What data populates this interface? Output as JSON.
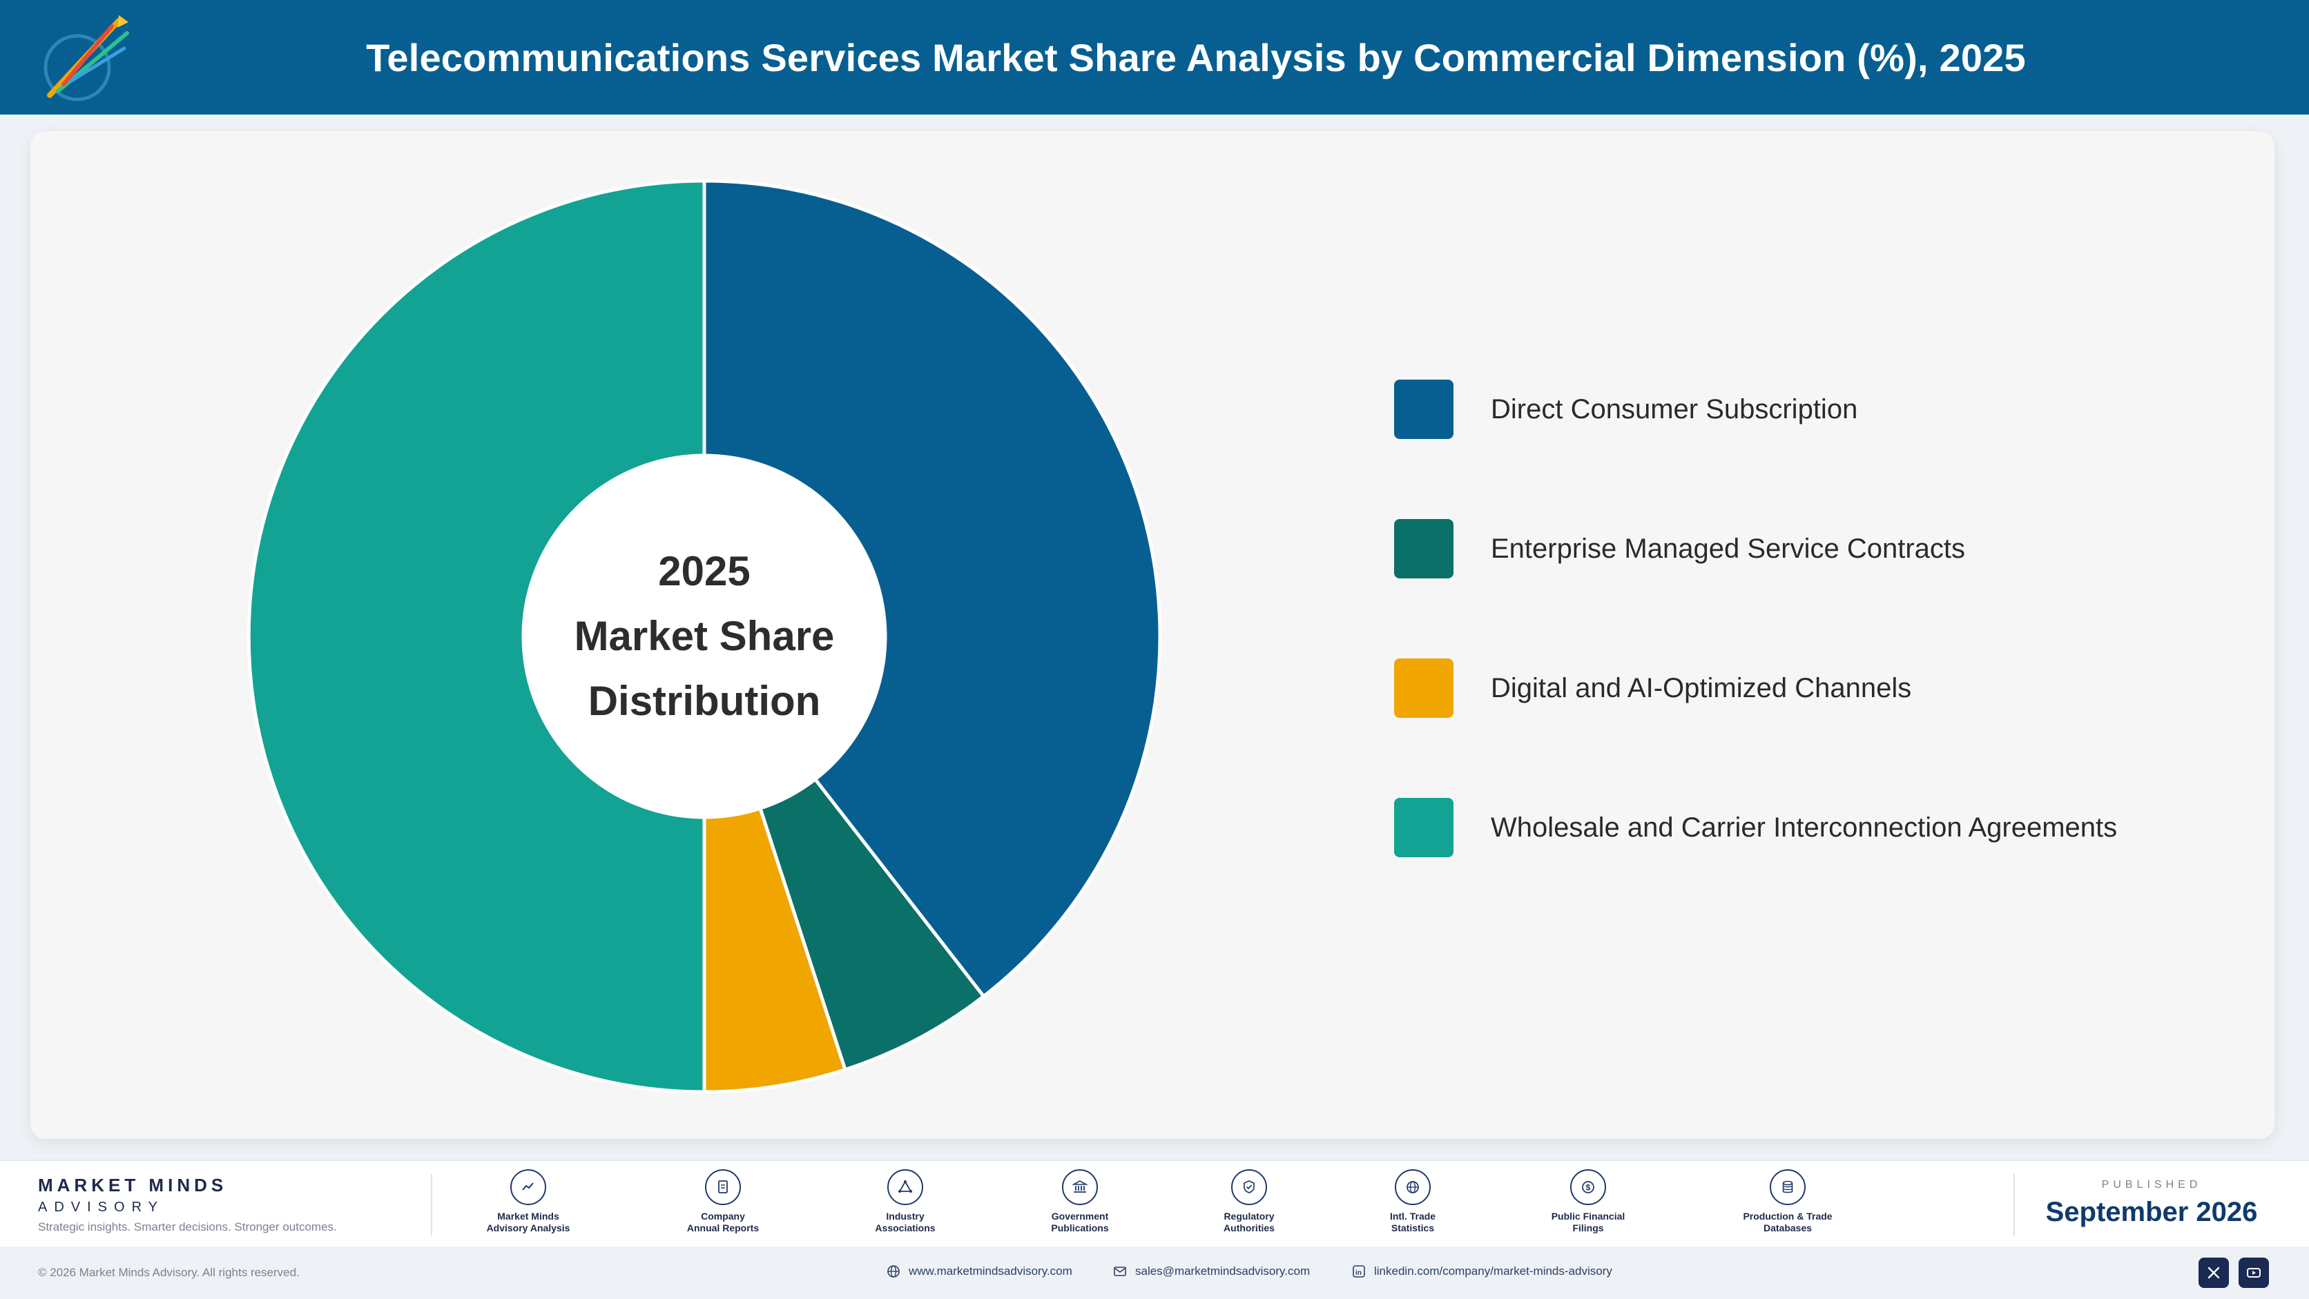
{
  "header": {
    "title": "Telecommunications Services Market Share Analysis by Commercial Dimension (%), 2025",
    "logo_icon": "market-minds-rocket-logo-icon",
    "background": "#075f91"
  },
  "chart_data": {
    "type": "pie",
    "title": "Telecommunications Services Market Share Analysis by Commercial Dimension (%), 2025",
    "center_label": [
      "2025",
      "Market Share",
      "Distribution"
    ],
    "donut": true,
    "legend_position": "right",
    "series": [
      {
        "name": "Direct Consumer Subscription",
        "value": 39.5,
        "color": "#075f91"
      },
      {
        "name": "Enterprise Managed Service Contracts",
        "value": 5.5,
        "color": "#0b7068"
      },
      {
        "name": "Digital and AI-Optimized Channels",
        "value": 5.0,
        "color": "#f0a500"
      },
      {
        "name": "Wholesale and Carrier Interconnection Agreements",
        "value": 50.0,
        "color": "#12a394"
      }
    ]
  },
  "footer": {
    "brand_name": "MARKET MINDS",
    "brand_sub": "ADVISORY",
    "brand_tagline": "Strategic insights. Smarter decisions. Stronger outcomes.",
    "sources": [
      {
        "line1": "Market Minds",
        "line2": "Advisory Analysis",
        "icon": "trend-line-icon"
      },
      {
        "line1": "Company",
        "line2": "Annual Reports",
        "icon": "document-icon"
      },
      {
        "line1": "Industry",
        "line2": "Associations",
        "icon": "network-triangle-icon"
      },
      {
        "line1": "Government",
        "line2": "Publications",
        "icon": "government-building-icon"
      },
      {
        "line1": "Regulatory",
        "line2": "Authorities",
        "icon": "shield-check-icon"
      },
      {
        "line1": "Intl. Trade",
        "line2": "Statistics",
        "icon": "globe-icon"
      },
      {
        "line1": "Public Financial",
        "line2": "Filings",
        "icon": "dollar-coin-icon"
      },
      {
        "line1": "Production & Trade",
        "line2": "Databases",
        "icon": "database-icon"
      }
    ],
    "published_label": "PUBLISHED",
    "published_date": "September 2026"
  },
  "bottom_bar": {
    "copyright": "© 2026 Market Minds Advisory. All rights reserved.",
    "website": "www.marketmindsadvisory.com",
    "email": "sales@marketmindsadvisory.com",
    "linkedin": "linkedin.com/company/market-minds-advisory",
    "social_icons": [
      "x-icon",
      "youtube-icon"
    ]
  }
}
